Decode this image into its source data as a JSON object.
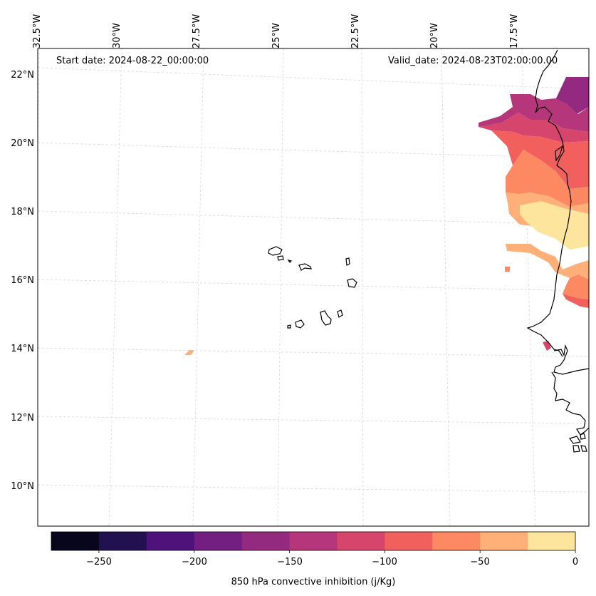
{
  "map": {
    "start_date": "Start date: 2024-08-22_00:00:00",
    "valid_date": "Valid_date: 2024-08-23T02:00:00.00",
    "lon_labels": [
      "32.5°W",
      "30°W",
      "27.5°W",
      "25°W",
      "22.5°W",
      "20°W",
      "17.5°W"
    ],
    "lat_labels": [
      "22°N",
      "20°N",
      "18°N",
      "16°N",
      "14°N",
      "12°N",
      "10°N"
    ],
    "extent": {
      "lon_min": -32.5,
      "lon_max": -16.2,
      "lat_min": 8.9,
      "lat_max": 22.8
    }
  },
  "colorbar": {
    "label": "850 hPa convective inhibition (j/Kg)",
    "tick_labels": [
      "−250",
      "−200",
      "−150",
      "−100",
      "−50",
      "0"
    ],
    "levels": [
      -275,
      -250,
      -225,
      -200,
      -175,
      -150,
      -125,
      -100,
      -75,
      -50,
      -25,
      0
    ],
    "colors": [
      "#07061c",
      "#221150",
      "#4f127b",
      "#721f81",
      "#932a7f",
      "#b5367a",
      "#d6456c",
      "#f1605d",
      "#fc8961",
      "#feb078",
      "#fee59e"
    ]
  },
  "colors": {
    "coastline": "#000000",
    "grid": "#cccccc",
    "frame": "#000000"
  }
}
